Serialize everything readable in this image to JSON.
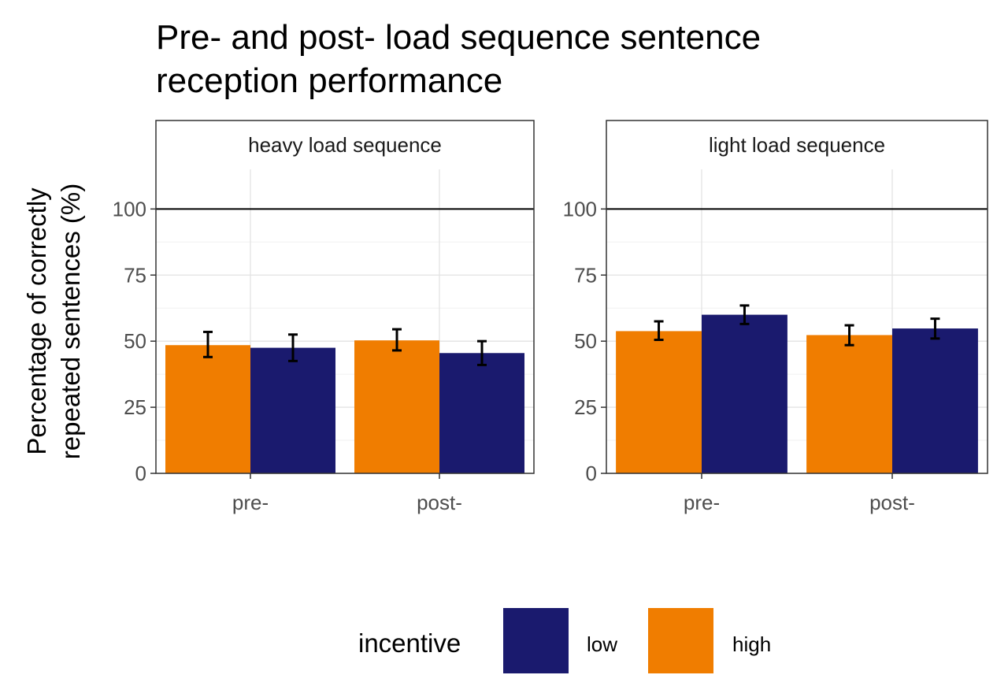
{
  "chart_data": {
    "type": "bar",
    "title_lines": [
      "Pre- and post- load sequence sentence",
      "reception performance"
    ],
    "ylabel_lines": [
      "Percentage of correctly",
      "repeated sentences (%)"
    ],
    "xlabel": "",
    "ylim": [
      0,
      115
    ],
    "yticks": [
      0,
      25,
      50,
      75,
      100
    ],
    "reference_line": 100,
    "grid": true,
    "categories": [
      "pre-",
      "post-"
    ],
    "series_colors": {
      "high": "#F07D00",
      "low": "#1A1A6E"
    },
    "panels": [
      {
        "strip_label": "heavy load sequence",
        "series": [
          {
            "name": "high",
            "values": [
              48.5,
              50.3
            ],
            "err_low": [
              44.0,
              46.5
            ],
            "err_high": [
              53.5,
              54.5
            ]
          },
          {
            "name": "low",
            "values": [
              47.5,
              45.5
            ],
            "err_low": [
              42.5,
              41.0
            ],
            "err_high": [
              52.5,
              50.0
            ]
          }
        ]
      },
      {
        "strip_label": "light load sequence",
        "series": [
          {
            "name": "high",
            "values": [
              53.8,
              52.3
            ],
            "err_low": [
              50.5,
              48.5
            ],
            "err_high": [
              57.5,
              56.0
            ]
          },
          {
            "name": "low",
            "values": [
              60.0,
              54.8
            ],
            "err_low": [
              56.5,
              51.0
            ],
            "err_high": [
              63.5,
              58.5
            ]
          }
        ]
      }
    ],
    "legend": {
      "title": "incentive",
      "placement": "bottom",
      "items": [
        {
          "label": "low",
          "color": "#1A1A6E"
        },
        {
          "label": "high",
          "color": "#F07D00"
        }
      ]
    }
  }
}
